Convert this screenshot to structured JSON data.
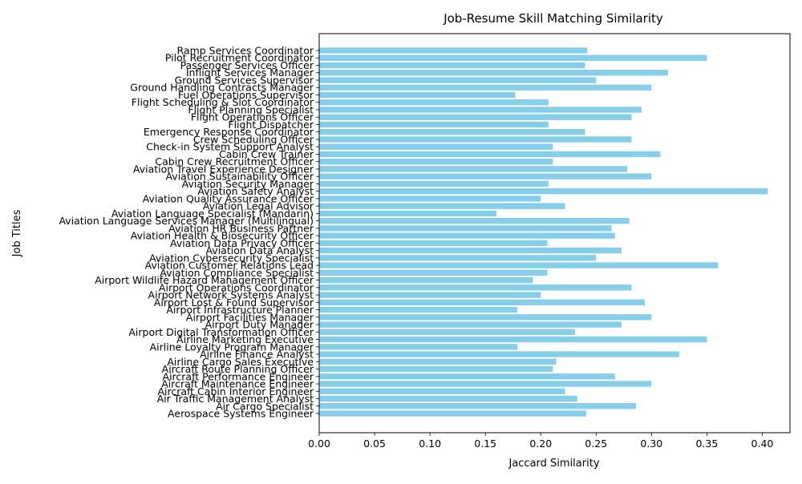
{
  "chart_data": {
    "type": "bar",
    "orientation": "horizontal",
    "title": "Job-Resume Skill Matching Similarity",
    "xlabel": "Jaccard Similarity",
    "ylabel": "Job Titles",
    "xlim": [
      0,
      0.425
    ],
    "xticks": [
      "0.00",
      "0.05",
      "0.10",
      "0.15",
      "0.20",
      "0.25",
      "0.30",
      "0.35",
      "0.40"
    ],
    "grid": false,
    "bar_color": "#87ceeb",
    "categories": [
      "Ramp Services Coordinator",
      "Pilot Recruitment Coordinator",
      "Passenger Services Officer",
      "Inflight Services Manager",
      "Ground Services Supervisor",
      "Ground Handling Contracts Manager",
      "Fuel Operations Supervisor",
      "Flight Scheduling & Slot Coordinator",
      "Flight Planning Specialist",
      "Flight Operations Officer",
      "Flight Dispatcher",
      "Emergency Response Coordinator",
      "Crew Scheduling Officer",
      "Check-in System Support Analyst",
      "Cabin Crew Trainer",
      "Cabin Crew Recruitment Officer",
      "Aviation Travel Experience Designer",
      "Aviation Sustainability Officer",
      "Aviation Security Manager",
      "Aviation Safety Analyst",
      "Aviation Quality Assurance Officer",
      "Aviation Legal Advisor",
      "Aviation Language Specialist (Mandarin)",
      "Aviation Language Services Manager (Multilingual)",
      "Aviation HR Business Partner",
      "Aviation Health & Biosecurity Officer",
      "Aviation Data Privacy Officer",
      "Aviation Data Analyst",
      "Aviation Cybersecurity Specialist",
      "Aviation Customer Relations Lead",
      "Aviation Compliance Specialist",
      "Airport Wildlife Hazard Management Officer",
      "Airport Operations Coordinator",
      "Airport Network Systems Analyst",
      "Airport Lost & Found Supervisor",
      "Airport Infrastructure Planner",
      "Airport Facilities Manager",
      "Airport Duty Manager",
      "Airport Digital Transformation Officer",
      "Airline Marketing Executive",
      "Airline Loyalty Program Manager",
      "Airline Finance Analyst",
      "Airline Cargo Sales Executive",
      "Aircraft Route Planning Officer",
      "Aircraft Performance Engineer",
      "Aircraft Maintenance Engineer",
      "Aircraft Cabin Interior Engineer",
      "Air Traffic Management Analyst",
      "Air Cargo Specialist",
      "Aerospace Systems Engineer"
    ],
    "values": [
      0.242,
      0.35,
      0.24,
      0.315,
      0.25,
      0.3,
      0.177,
      0.207,
      0.291,
      0.282,
      0.207,
      0.24,
      0.282,
      0.211,
      0.308,
      0.211,
      0.278,
      0.3,
      0.207,
      0.405,
      0.2,
      0.222,
      0.16,
      0.28,
      0.264,
      0.267,
      0.206,
      0.273,
      0.25,
      0.36,
      0.206,
      0.193,
      0.282,
      0.2,
      0.294,
      0.179,
      0.3,
      0.273,
      0.231,
      0.35,
      0.179,
      0.325,
      0.214,
      0.211,
      0.267,
      0.3,
      0.222,
      0.233,
      0.286,
      0.241
    ]
  }
}
